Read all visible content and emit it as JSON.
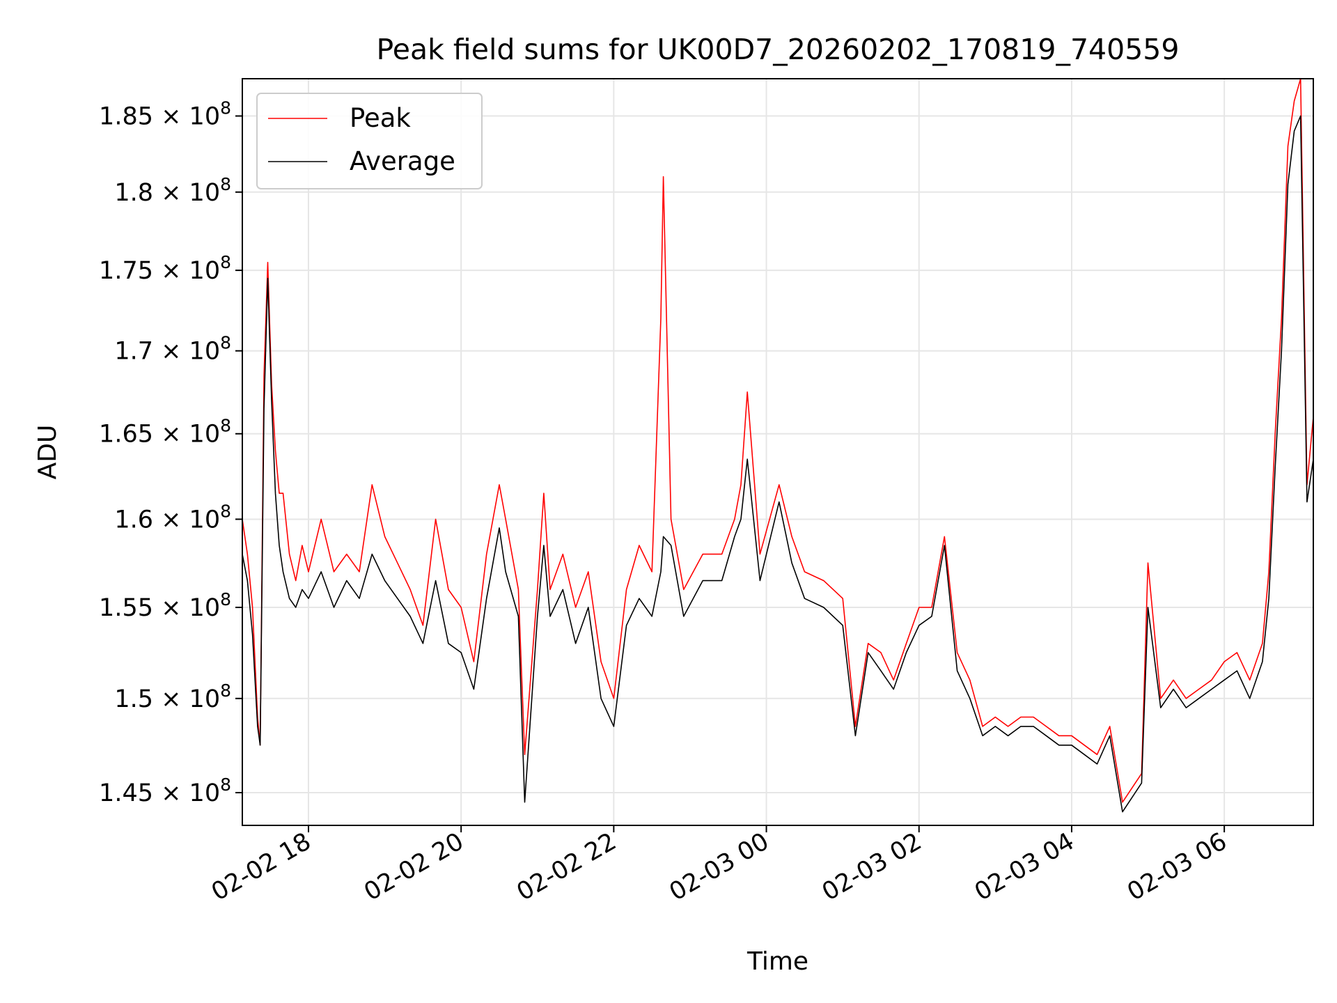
{
  "chart_data": {
    "type": "line",
    "title": "Peak field sums for UK00D7_20260202_170819_740559",
    "xlabel": "Time",
    "ylabel": "ADU",
    "y_scale": "log",
    "grid": true,
    "legend_position": "upper-left",
    "x_range": [
      "2026-02-02 17:08",
      "2026-02-03 07:10"
    ],
    "y_range": [
      143300000,
      187500000
    ],
    "x_ticks": [
      {
        "value": "2026-02-02 18:00",
        "label": "02-02 18"
      },
      {
        "value": "2026-02-02 20:00",
        "label": "02-02 20"
      },
      {
        "value": "2026-02-02 22:00",
        "label": "02-02 22"
      },
      {
        "value": "2026-02-03 00:00",
        "label": "02-03 00"
      },
      {
        "value": "2026-02-03 02:00",
        "label": "02-03 02"
      },
      {
        "value": "2026-02-03 04:00",
        "label": "02-03 04"
      },
      {
        "value": "2026-02-03 06:00",
        "label": "02-03 06"
      }
    ],
    "y_ticks": [
      {
        "value": 145000000,
        "mantissa": "1.45",
        "base": "10",
        "exp": "8"
      },
      {
        "value": 150000000,
        "mantissa": "1.5",
        "base": "10",
        "exp": "8"
      },
      {
        "value": 155000000,
        "mantissa": "1.55",
        "base": "10",
        "exp": "8"
      },
      {
        "value": 160000000,
        "mantissa": "1.6",
        "base": "10",
        "exp": "8"
      },
      {
        "value": 165000000,
        "mantissa": "1.65",
        "base": "10",
        "exp": "8"
      },
      {
        "value": 170000000,
        "mantissa": "1.7",
        "base": "10",
        "exp": "8"
      },
      {
        "value": 175000000,
        "mantissa": "1.75",
        "base": "10",
        "exp": "8"
      },
      {
        "value": 180000000,
        "mantissa": "1.8",
        "base": "10",
        "exp": "8"
      },
      {
        "value": 185000000,
        "mantissa": "1.85",
        "base": "10",
        "exp": "8"
      }
    ],
    "series": [
      {
        "name": "Peak",
        "color": "#ff0000",
        "x": [
          "2026-02-02 17:08",
          "2026-02-02 17:12",
          "2026-02-02 17:16",
          "2026-02-02 17:20",
          "2026-02-02 17:22",
          "2026-02-02 17:25",
          "2026-02-02 17:28",
          "2026-02-02 17:31",
          "2026-02-02 17:34",
          "2026-02-02 17:37",
          "2026-02-02 17:40",
          "2026-02-02 17:45",
          "2026-02-02 17:50",
          "2026-02-02 17:55",
          "2026-02-02 18:00",
          "2026-02-02 18:10",
          "2026-02-02 18:20",
          "2026-02-02 18:30",
          "2026-02-02 18:40",
          "2026-02-02 18:50",
          "2026-02-02 19:00",
          "2026-02-02 19:10",
          "2026-02-02 19:20",
          "2026-02-02 19:30",
          "2026-02-02 19:40",
          "2026-02-02 19:50",
          "2026-02-02 20:00",
          "2026-02-02 20:10",
          "2026-02-02 20:20",
          "2026-02-02 20:30",
          "2026-02-02 20:35",
          "2026-02-02 20:45",
          "2026-02-02 20:50",
          "2026-02-02 21:00",
          "2026-02-02 21:05",
          "2026-02-02 21:10",
          "2026-02-02 21:20",
          "2026-02-02 21:30",
          "2026-02-02 21:40",
          "2026-02-02 21:50",
          "2026-02-02 22:00",
          "2026-02-02 22:10",
          "2026-02-02 22:20",
          "2026-02-02 22:30",
          "2026-02-02 22:37",
          "2026-02-02 22:39",
          "2026-02-02 22:45",
          "2026-02-02 22:55",
          "2026-02-02 23:10",
          "2026-02-02 23:25",
          "2026-02-02 23:35",
          "2026-02-02 23:40",
          "2026-02-02 23:45",
          "2026-02-02 23:55",
          "2026-02-03 00:10",
          "2026-02-03 00:20",
          "2026-02-03 00:30",
          "2026-02-03 00:45",
          "2026-02-03 01:00",
          "2026-02-03 01:10",
          "2026-02-03 01:20",
          "2026-02-03 01:30",
          "2026-02-03 01:40",
          "2026-02-03 01:50",
          "2026-02-03 02:00",
          "2026-02-03 02:10",
          "2026-02-03 02:20",
          "2026-02-03 02:30",
          "2026-02-03 02:40",
          "2026-02-03 02:50",
          "2026-02-03 03:00",
          "2026-02-03 03:10",
          "2026-02-03 03:20",
          "2026-02-03 03:30",
          "2026-02-03 03:40",
          "2026-02-03 03:50",
          "2026-02-03 04:00",
          "2026-02-03 04:10",
          "2026-02-03 04:20",
          "2026-02-03 04:30",
          "2026-02-03 04:40",
          "2026-02-03 04:55",
          "2026-02-03 05:00",
          "2026-02-03 05:10",
          "2026-02-03 05:20",
          "2026-02-03 05:30",
          "2026-02-03 05:40",
          "2026-02-03 05:50",
          "2026-02-03 06:00",
          "2026-02-03 06:10",
          "2026-02-03 06:20",
          "2026-02-03 06:30",
          "2026-02-03 06:35",
          "2026-02-03 06:40",
          "2026-02-03 06:45",
          "2026-02-03 06:50",
          "2026-02-03 06:55",
          "2026-02-03 07:00",
          "2026-02-03 07:05",
          "2026-02-03 07:10"
        ],
        "values": [
          160000000,
          158000000,
          155000000,
          149000000,
          147500000,
          168500000,
          175500000,
          168000000,
          164000000,
          161500000,
          161500000,
          158000000,
          156500000,
          158500000,
          157000000,
          160000000,
          157000000,
          158000000,
          157000000,
          162000000,
          159000000,
          157500000,
          156000000,
          154000000,
          160000000,
          156000000,
          155000000,
          152000000,
          158000000,
          162000000,
          160000000,
          156000000,
          147000000,
          156000000,
          161500000,
          156000000,
          158000000,
          155000000,
          157000000,
          152000000,
          150000000,
          156000000,
          158500000,
          157000000,
          172000000,
          181000000,
          160000000,
          156000000,
          158000000,
          158000000,
          160000000,
          162000000,
          167500000,
          158000000,
          162000000,
          159000000,
          157000000,
          156500000,
          155500000,
          148500000,
          153000000,
          152500000,
          151000000,
          153000000,
          155000000,
          155000000,
          159000000,
          152500000,
          151000000,
          148500000,
          149000000,
          148500000,
          149000000,
          149000000,
          148500000,
          148000000,
          148000000,
          147500000,
          147000000,
          148500000,
          144500000,
          146000000,
          157500000,
          150000000,
          151000000,
          150000000,
          150500000,
          151000000,
          152000000,
          152500000,
          151000000,
          153000000,
          157000000,
          165000000,
          172000000,
          183000000,
          186000000,
          187500000,
          162000000,
          166000000
        ]
      },
      {
        "name": "Average",
        "color": "#000000",
        "x": [
          "2026-02-02 17:08",
          "2026-02-02 17:12",
          "2026-02-02 17:16",
          "2026-02-02 17:20",
          "2026-02-02 17:22",
          "2026-02-02 17:25",
          "2026-02-02 17:28",
          "2026-02-02 17:31",
          "2026-02-02 17:34",
          "2026-02-02 17:37",
          "2026-02-02 17:40",
          "2026-02-02 17:45",
          "2026-02-02 17:50",
          "2026-02-02 17:55",
          "2026-02-02 18:00",
          "2026-02-02 18:10",
          "2026-02-02 18:20",
          "2026-02-02 18:30",
          "2026-02-02 18:40",
          "2026-02-02 18:50",
          "2026-02-02 19:00",
          "2026-02-02 19:10",
          "2026-02-02 19:20",
          "2026-02-02 19:30",
          "2026-02-02 19:40",
          "2026-02-02 19:50",
          "2026-02-02 20:00",
          "2026-02-02 20:10",
          "2026-02-02 20:20",
          "2026-02-02 20:30",
          "2026-02-02 20:35",
          "2026-02-02 20:45",
          "2026-02-02 20:50",
          "2026-02-02 21:00",
          "2026-02-02 21:05",
          "2026-02-02 21:10",
          "2026-02-02 21:20",
          "2026-02-02 21:30",
          "2026-02-02 21:40",
          "2026-02-02 21:50",
          "2026-02-02 22:00",
          "2026-02-02 22:10",
          "2026-02-02 22:20",
          "2026-02-02 22:30",
          "2026-02-02 22:37",
          "2026-02-02 22:39",
          "2026-02-02 22:45",
          "2026-02-02 22:55",
          "2026-02-02 23:10",
          "2026-02-02 23:25",
          "2026-02-02 23:35",
          "2026-02-02 23:40",
          "2026-02-02 23:45",
          "2026-02-02 23:55",
          "2026-02-03 00:10",
          "2026-02-03 00:20",
          "2026-02-03 00:30",
          "2026-02-03 00:45",
          "2026-02-03 01:00",
          "2026-02-03 01:10",
          "2026-02-03 01:20",
          "2026-02-03 01:30",
          "2026-02-03 01:40",
          "2026-02-03 01:50",
          "2026-02-03 02:00",
          "2026-02-03 02:10",
          "2026-02-03 02:20",
          "2026-02-03 02:30",
          "2026-02-03 02:40",
          "2026-02-03 02:50",
          "2026-02-03 03:00",
          "2026-02-03 03:10",
          "2026-02-03 03:20",
          "2026-02-03 03:30",
          "2026-02-03 03:40",
          "2026-02-03 03:50",
          "2026-02-03 04:00",
          "2026-02-03 04:10",
          "2026-02-03 04:20",
          "2026-02-03 04:30",
          "2026-02-03 04:40",
          "2026-02-03 04:55",
          "2026-02-03 05:00",
          "2026-02-03 05:10",
          "2026-02-03 05:20",
          "2026-02-03 05:30",
          "2026-02-03 05:40",
          "2026-02-03 05:50",
          "2026-02-03 06:00",
          "2026-02-03 06:10",
          "2026-02-03 06:20",
          "2026-02-03 06:30",
          "2026-02-03 06:35",
          "2026-02-03 06:40",
          "2026-02-03 06:45",
          "2026-02-03 06:50",
          "2026-02-03 06:55",
          "2026-02-03 07:00",
          "2026-02-03 07:05",
          "2026-02-03 07:10"
        ],
        "values": [
          158000000,
          156500000,
          153500000,
          148500000,
          147500000,
          166500000,
          174500000,
          167000000,
          161500000,
          158500000,
          157000000,
          155500000,
          155000000,
          156000000,
          155500000,
          157000000,
          155000000,
          156500000,
          155500000,
          158000000,
          156500000,
          155500000,
          154500000,
          153000000,
          156500000,
          153000000,
          152500000,
          150500000,
          155500000,
          159500000,
          157000000,
          154500000,
          144500000,
          154500000,
          158500000,
          154500000,
          156000000,
          153000000,
          155000000,
          150000000,
          148500000,
          154000000,
          155500000,
          154500000,
          157000000,
          159000000,
          158500000,
          154500000,
          156500000,
          156500000,
          159000000,
          160000000,
          163500000,
          156500000,
          161000000,
          157500000,
          155500000,
          155000000,
          154000000,
          148000000,
          152500000,
          151500000,
          150500000,
          152500000,
          154000000,
          154500000,
          158500000,
          151500000,
          150000000,
          148000000,
          148500000,
          148000000,
          148500000,
          148500000,
          148000000,
          147500000,
          147500000,
          147000000,
          146500000,
          148000000,
          144000000,
          145500000,
          155000000,
          149500000,
          150500000,
          149500000,
          150000000,
          150500000,
          151000000,
          151500000,
          150000000,
          152000000,
          155500000,
          163000000,
          170000000,
          180500000,
          184000000,
          185000000,
          161000000,
          163500000
        ]
      }
    ]
  }
}
